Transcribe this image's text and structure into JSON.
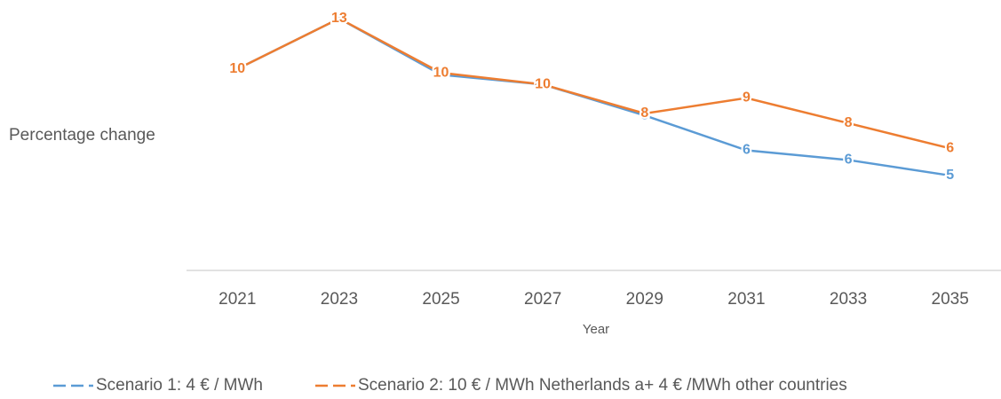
{
  "chart_data": {
    "type": "line",
    "y_label": "Percentage change",
    "x_label": "Year",
    "categories": [
      "2021",
      "2023",
      "2025",
      "2027",
      "2029",
      "2031",
      "2033",
      "2035"
    ],
    "series": [
      {
        "name": "Scenario 1: 4 € / MWh",
        "color": "#5b9bd5",
        "values": [
          10.4,
          13.0,
          10.1,
          9.6,
          8.0,
          6.2,
          5.7,
          4.9
        ],
        "value_labels": [
          "10",
          "13",
          "10",
          "10",
          "8",
          "6",
          "6",
          "5"
        ]
      },
      {
        "name": "Scenario 2: 10 € / MWh Netherlands a+ 4 € /MWh other countries",
        "color": "#ed7d31",
        "values": [
          10.4,
          13.0,
          10.2,
          9.6,
          8.1,
          8.9,
          7.6,
          6.3
        ],
        "value_labels": [
          "10",
          "13",
          "10",
          "10",
          "8",
          "9",
          "8",
          "6"
        ]
      }
    ],
    "ylim": [
      0,
      13.5
    ],
    "grid": false
  }
}
